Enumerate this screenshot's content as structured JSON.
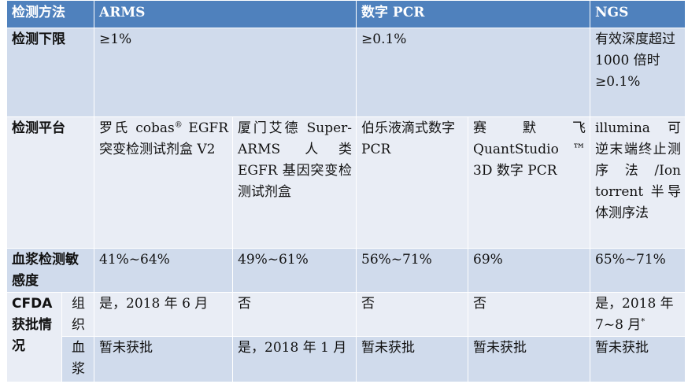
{
  "header": {
    "method_label": "检测方法",
    "arms": "ARMS",
    "dpcr": "数字 PCR",
    "ngs": "NGS"
  },
  "limit": {
    "label": "检测下限",
    "arms": "≥1%",
    "dpcr": "≥0.1%",
    "ngs": "有效深度超过 1000 倍时≥0.1%"
  },
  "platform": {
    "label": "检测平台",
    "roche_main": "罗氏 cobas",
    "roche_sup": "®",
    "roche_rest": " EGFR 突变检测试剂盒 V2",
    "amoy": "厦门艾德 Super-ARMS 人类 EGFR 基因突变检测试剂盒",
    "biorad": "伯乐液滴式数字 PCR",
    "thermo": "赛默飞 QuantStudio ™ 3D 数字 PCR",
    "ngs": "illumina 可逆末端终止测序法/Ion torrent 半导体测序法"
  },
  "sensitivity": {
    "label": "血浆检测敏感度",
    "roche": "41%~64%",
    "amoy": "49%~61%",
    "biorad": "56%~71%",
    "thermo": "69%",
    "ngs": "65%~71%"
  },
  "cfda": {
    "label": "CFDA获批情况",
    "tissue": {
      "label": "组织",
      "roche": "是，2018 年 6 月",
      "amoy": "否",
      "biorad": "否",
      "thermo": "否",
      "ngs_main": "是，2018 年 7~8 月",
      "ngs_sup": "*"
    },
    "plasma": {
      "label": "血浆",
      "roche": "暂未获批",
      "amoy": "是，2018 年 1 月",
      "biorad": "暂未获批",
      "thermo": "暂未获批",
      "ngs": "暂未获批"
    }
  },
  "colors": {
    "header_bg": "#4f81bd",
    "band_bg": "#d0dbec",
    "plain_bg": "#e9edf5"
  }
}
